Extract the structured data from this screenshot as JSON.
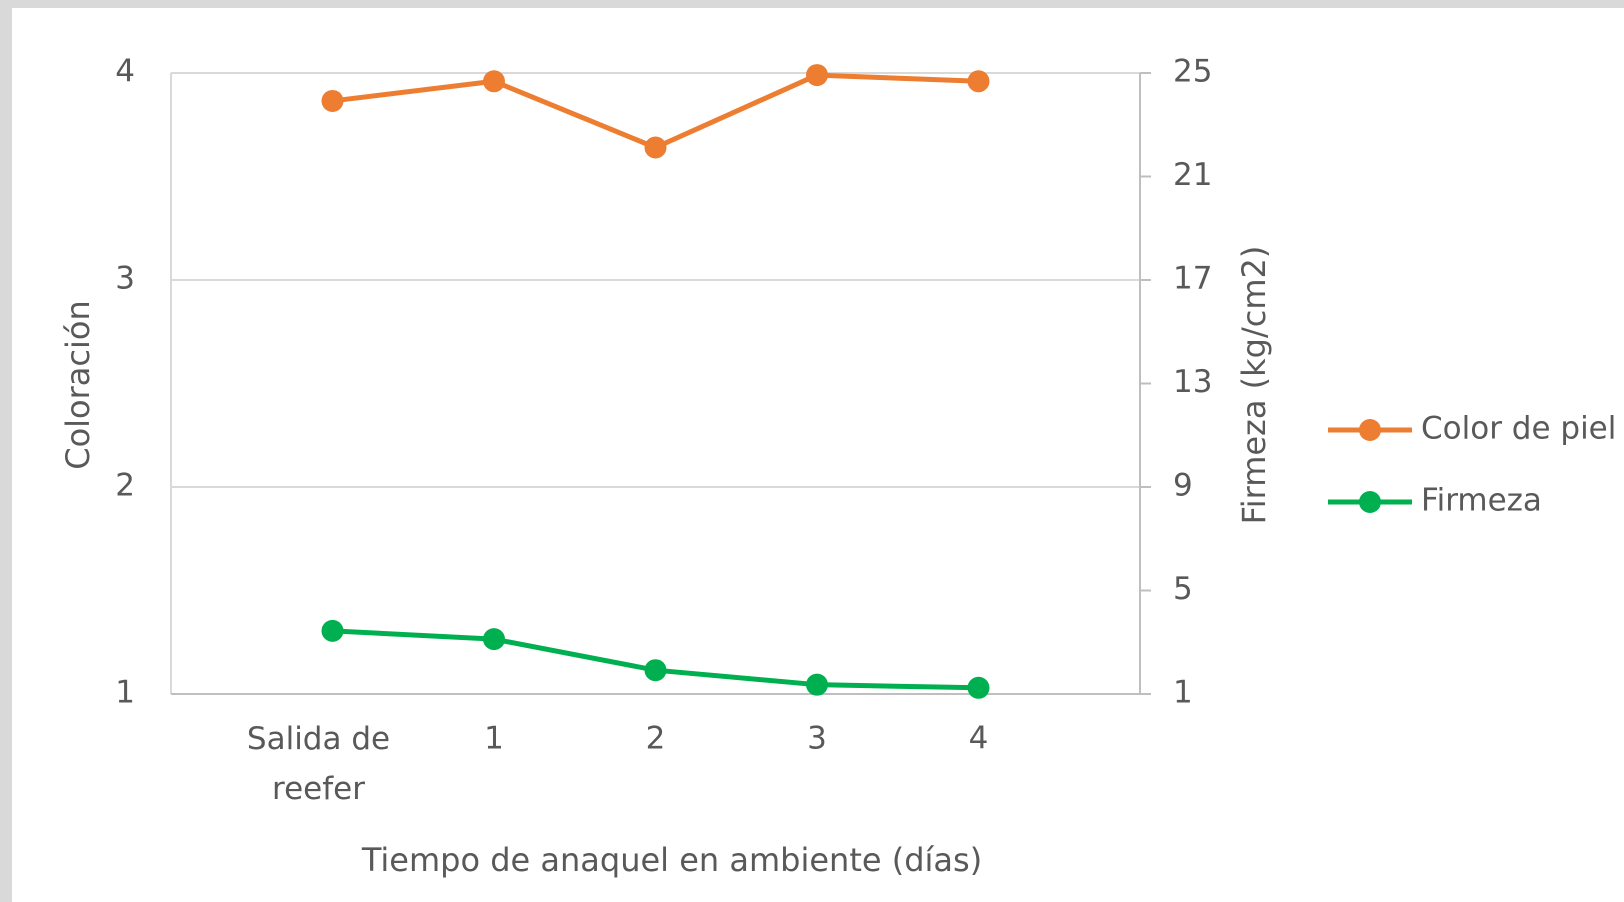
{
  "chart_data": {
    "type": "line",
    "xlabel": "Tiempo de anaquel en ambiente (días)",
    "ylabel": "Coloración",
    "y2label": "Firmeza (kg/cm2)",
    "categories": [
      "Salida de reefer",
      "1",
      "2",
      "3",
      "4"
    ],
    "series": [
      {
        "name": "Color de piel",
        "color": "#ed7d31",
        "values": [
          3.865,
          3.96,
          3.64,
          3.99,
          3.96
        ]
      },
      {
        "name": "Firmeza",
        "color": "#00b050",
        "axis": "y2",
        "values": [
          3.44,
          3.12,
          1.92,
          1.36,
          1.24
        ]
      }
    ],
    "ylim": [
      1,
      4
    ],
    "yticks": [
      1,
      2,
      3,
      4
    ],
    "y2lim": [
      1,
      25
    ],
    "y2ticks": [
      1,
      5,
      9,
      13,
      17,
      21,
      25
    ],
    "grid": true,
    "legend": "right"
  }
}
